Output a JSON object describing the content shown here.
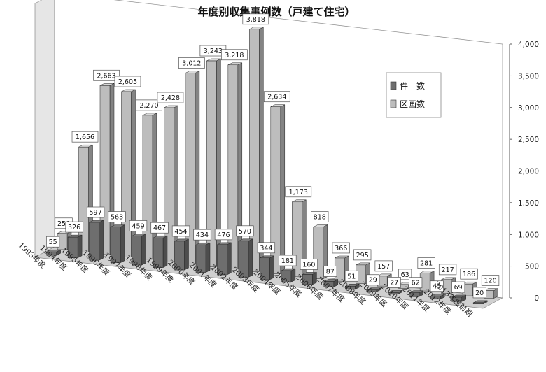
{
  "chart_data": {
    "type": "bar",
    "title": "年度別収集事例数（戸建て住宅）",
    "categories": [
      "1993年度",
      "1994年度",
      "1995年度",
      "1996年度",
      "1997年度",
      "1998年度",
      "1999年度",
      "2000年度",
      "2001年度",
      "2002年度",
      "2003年度",
      "2004年度",
      "2005年度",
      "2006年度",
      "2007年度",
      "2008年度",
      "2009年度",
      "2010年度",
      "2011年度",
      "2012年度",
      "2013年度前期"
    ],
    "series": [
      {
        "name": "件　数",
        "color": "#6e6e6e",
        "values": [
          55,
          326,
          597,
          563,
          459,
          467,
          454,
          434,
          476,
          570,
          344,
          181,
          160,
          87,
          51,
          29,
          27,
          62,
          45,
          69,
          20
        ]
      },
      {
        "name": "区画数",
        "color": "#bdbdbd",
        "values": [
          256,
          1656,
          2663,
          2605,
          2270,
          2428,
          3012,
          3243,
          3218,
          3818,
          2634,
          1173,
          818,
          366,
          295,
          157,
          63,
          281,
          217,
          186,
          120
        ]
      }
    ],
    "y_ticks": [
      "0",
      "500",
      "1,000",
      "1,500",
      "2,000",
      "2,500",
      "3,000",
      "3,500",
      "4,000"
    ],
    "ylim": [
      0,
      4000
    ],
    "legend_position": "right",
    "grid": false,
    "style": "3d"
  }
}
